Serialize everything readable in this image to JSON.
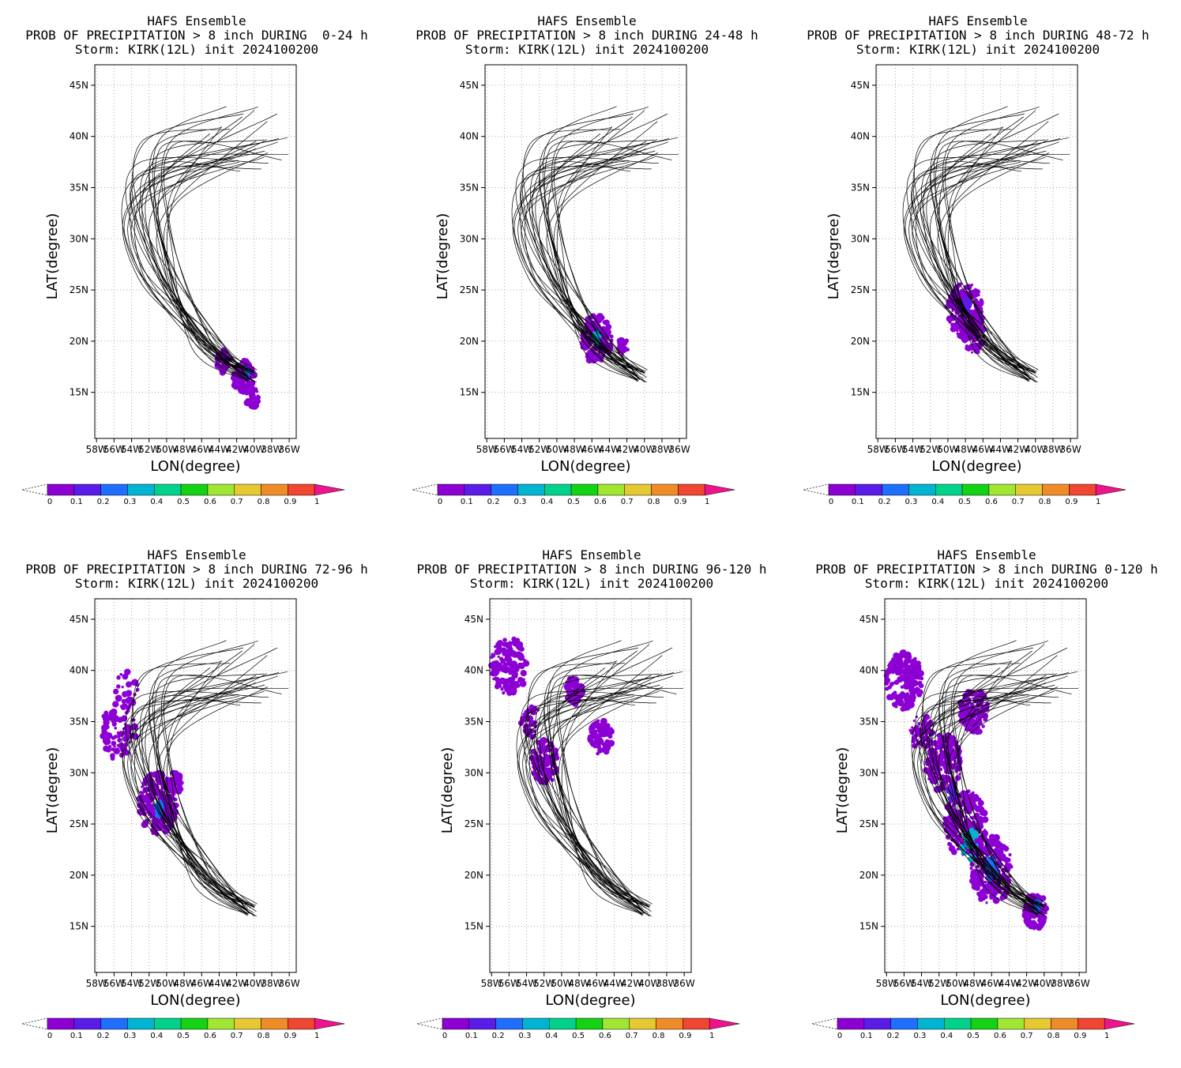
{
  "panels": [
    {
      "line1": "HAFS Ensemble",
      "line2": "PROB OF PRECIPITATION > 8 inch DURING  0-24 h",
      "line3": "Storm: KIRK(12L) init 2024100200",
      "xlabel": "LON(degree)",
      "ylabel": "LAT(degree)"
    },
    {
      "line1": "HAFS Ensemble",
      "line2": "PROB OF PRECIPITATION > 8 inch DURING 24-48 h",
      "line3": "Storm: KIRK(12L) init 2024100200",
      "xlabel": "LON(degree)",
      "ylabel": "LAT(degree)"
    },
    {
      "line1": "HAFS Ensemble",
      "line2": "PROB OF PRECIPITATION > 8 inch DURING 48-72 h",
      "line3": "Storm: KIRK(12L) init 2024100200",
      "xlabel": "LON(degree)",
      "ylabel": "LAT(degree)"
    },
    {
      "line1": "HAFS Ensemble",
      "line2": "PROB OF PRECIPITATION > 8 inch DURING 72-96 h",
      "line3": "Storm: KIRK(12L) init 2024100200",
      "xlabel": "LON(degree)",
      "ylabel": "LAT(degree)"
    },
    {
      "line1": "HAFS Ensemble",
      "line2": "PROB OF PRECIPITATION > 8 inch DURING 96-120 h",
      "line3": "Storm: KIRK(12L) init 2024100200",
      "xlabel": "LON(degree)",
      "ylabel": "LAT(degree)"
    },
    {
      "line1": "HAFS Ensemble",
      "line2": "PROB OF PRECIPITATION > 8 inch DURING 0-120 h",
      "line3": "Storm: KIRK(12L) init 2024100200",
      "xlabel": "LON(degree)",
      "ylabel": "LAT(degree)"
    }
  ],
  "chart_data": {
    "type": "heatmap",
    "lat_ticks": [
      "15N",
      "20N",
      "25N",
      "30N",
      "35N",
      "40N",
      "45N"
    ],
    "lat_values": [
      15,
      20,
      25,
      30,
      35,
      40,
      45
    ],
    "lon_ticks": [
      "58W",
      "56W",
      "54W",
      "52W",
      "50W",
      "48W",
      "46W",
      "44W",
      "42W",
      "40W",
      "38W",
      "36W"
    ],
    "lon_values": [
      58,
      56,
      54,
      52,
      50,
      48,
      46,
      44,
      42,
      40,
      38,
      36
    ],
    "xlim": [
      58.2,
      35.2
    ],
    "ylim": [
      10.5,
      47
    ],
    "colorbar": {
      "labels": [
        "0",
        "0.1",
        "0.2",
        "0.3",
        "0.4",
        "0.5",
        "0.6",
        "0.7",
        "0.8",
        "0.9",
        "1"
      ],
      "colors": [
        "#8c00d4",
        "#5a1ce8",
        "#1e6eff",
        "#00b4d2",
        "#00d28c",
        "#14d214",
        "#a0e632",
        "#e6c832",
        "#f08c28",
        "#f04632",
        "#f0148c"
      ]
    },
    "track_color": "#000000"
  }
}
